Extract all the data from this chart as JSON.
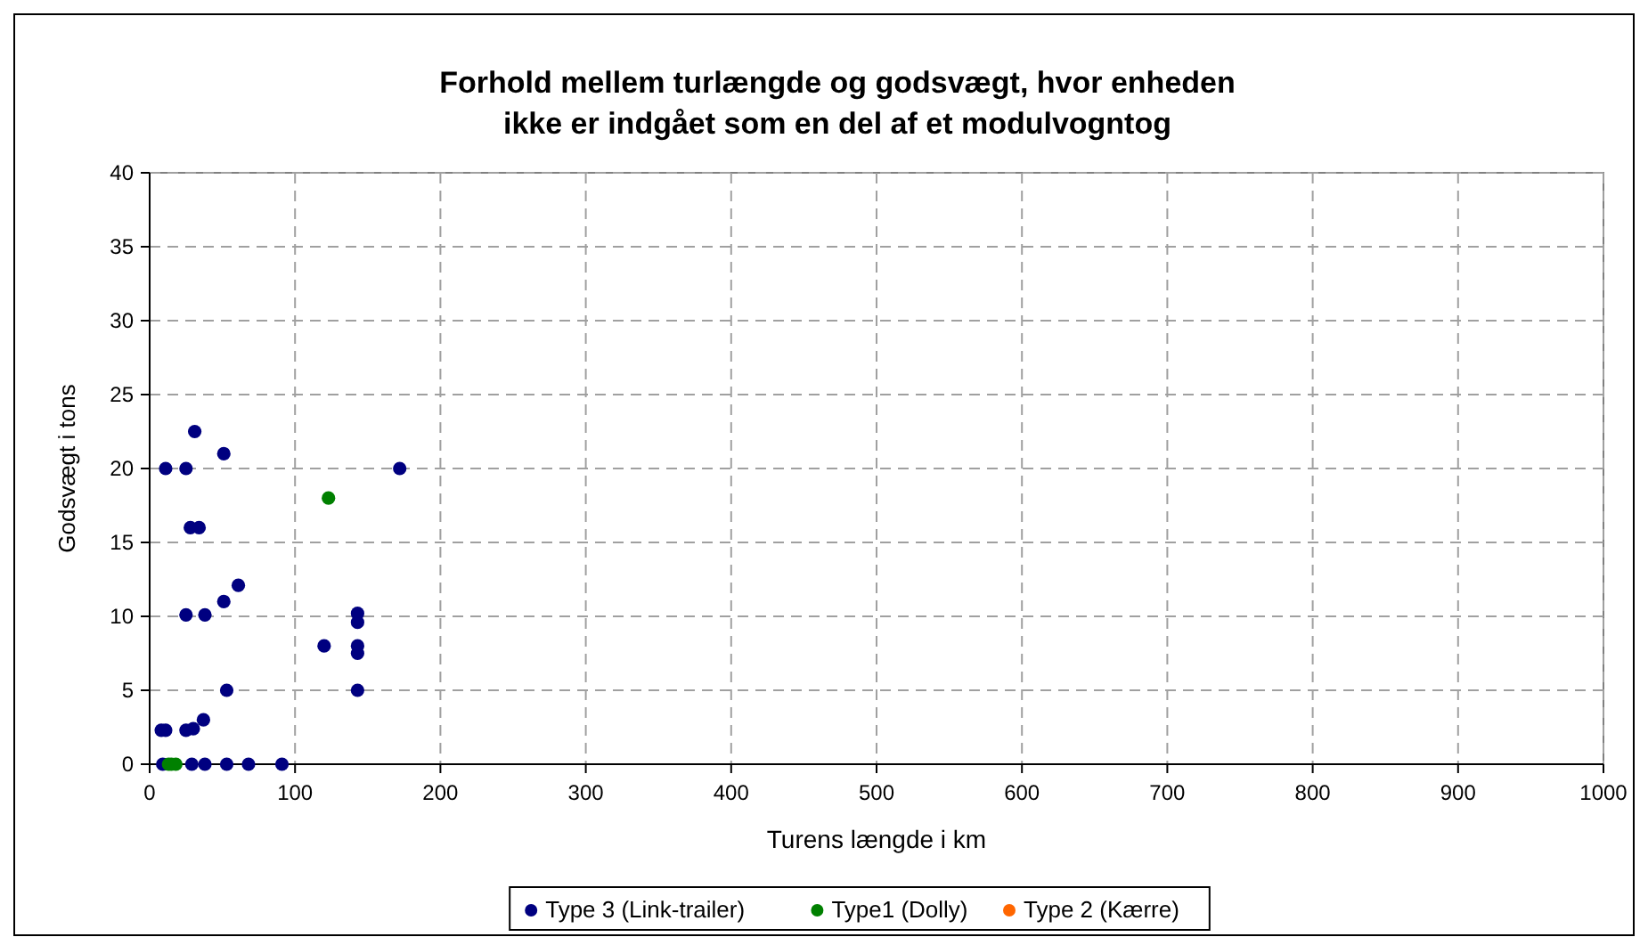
{
  "chart_data": {
    "type": "scatter",
    "title": "Forhold mellem turlængde og godsvægt, hvor enheden ikke er indgået som en del af et modulvogntog",
    "xlabel": "Turens længde i km",
    "ylabel": "Godsvægt i tons",
    "xlim": [
      0,
      1000
    ],
    "xticks": [
      0,
      100,
      200,
      300,
      400,
      500,
      600,
      700,
      800,
      900,
      1000
    ],
    "ylim": [
      0,
      40
    ],
    "yticks": [
      0,
      5,
      10,
      15,
      20,
      25,
      30,
      35,
      40
    ],
    "grid": true,
    "legend": "bottom",
    "marker": "circle",
    "series": [
      {
        "name": "Type 3 (Link-trailer)",
        "color": "#000080",
        "x": [
          31,
          11,
          25,
          51,
          172,
          28,
          34,
          61,
          51,
          25,
          38,
          143,
          143,
          120,
          143,
          143,
          53,
          143,
          37,
          8,
          11,
          25,
          30,
          9,
          29,
          38,
          53,
          68,
          91
        ],
        "values": [
          22.5,
          20,
          20,
          21,
          20,
          16,
          16,
          12.1,
          11,
          10.1,
          10.1,
          10.2,
          9.6,
          8,
          8,
          7.5,
          5,
          5,
          3,
          2.3,
          2.3,
          2.3,
          2.4,
          0,
          0,
          0,
          0,
          0,
          0
        ]
      },
      {
        "name": "Type1 (Dolly)",
        "color": "#008000",
        "x": [
          123,
          13,
          15,
          18
        ],
        "values": [
          18,
          0,
          0,
          0
        ]
      },
      {
        "name": "Type 2 (Kærre)",
        "color": "#ff6600"
      }
    ]
  }
}
